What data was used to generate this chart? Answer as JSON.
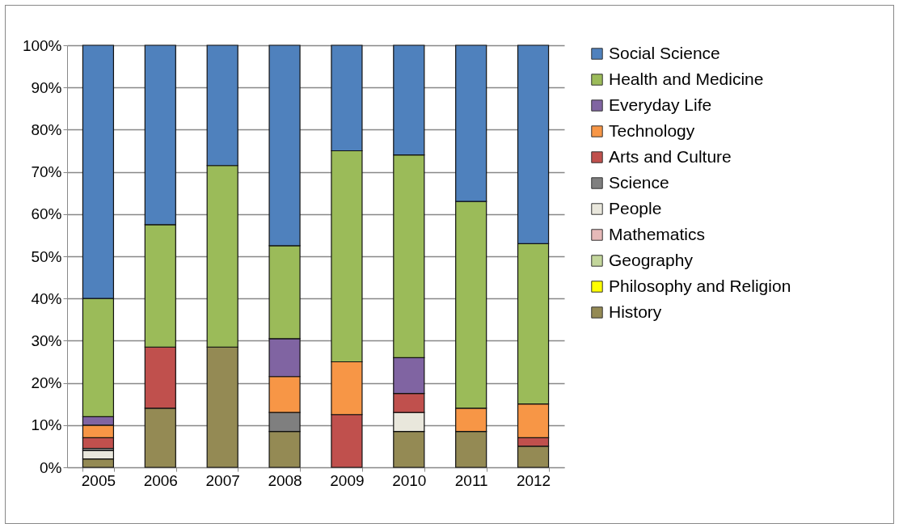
{
  "chart_data": {
    "type": "bar",
    "stacked": true,
    "categories": [
      "2005",
      "2006",
      "2007",
      "2008",
      "2009",
      "2010",
      "2011",
      "2012"
    ],
    "series": [
      {
        "name": "History",
        "color": "#948a54",
        "values": [
          2,
          14,
          28.5,
          8.5,
          0,
          8.5,
          8.5,
          5
        ]
      },
      {
        "name": "Philosophy and Religion",
        "color": "#ffff00",
        "values": [
          0,
          0,
          0,
          0,
          0,
          0,
          0,
          0
        ]
      },
      {
        "name": "Geography",
        "color": "#c3d69b",
        "values": [
          0,
          0,
          0,
          0,
          0,
          0,
          0,
          0
        ]
      },
      {
        "name": "Mathematics",
        "color": "#e6b9b8",
        "values": [
          0,
          0,
          0,
          0,
          0,
          0,
          0,
          0
        ]
      },
      {
        "name": "People",
        "color": "#e9e7dc",
        "values": [
          2,
          0,
          0,
          0,
          0,
          4.5,
          0,
          0
        ]
      },
      {
        "name": "Science",
        "color": "#7f7f7f",
        "values": [
          0.5,
          0,
          0,
          4.5,
          0,
          0,
          0,
          0
        ]
      },
      {
        "name": "Arts and Culture",
        "color": "#c0504d",
        "values": [
          2.5,
          14.5,
          0,
          0,
          12.5,
          4.5,
          0,
          2
        ]
      },
      {
        "name": "Technology",
        "color": "#f79646",
        "values": [
          3,
          0,
          0,
          8.5,
          12.5,
          0,
          5.5,
          8
        ]
      },
      {
        "name": "Everyday Life",
        "color": "#8064a2",
        "values": [
          2,
          0,
          0,
          9,
          0,
          8.5,
          0,
          0
        ]
      },
      {
        "name": "Health and Medicine",
        "color": "#9bbb59",
        "values": [
          28,
          29,
          43,
          22,
          50,
          48,
          49,
          38
        ]
      },
      {
        "name": "Social Science",
        "color": "#4f81bd",
        "values": [
          60,
          42.5,
          28.5,
          47.5,
          25,
          26,
          37,
          47
        ]
      }
    ],
    "ylim": [
      0,
      100
    ],
    "yticks": [
      {
        "value": 0,
        "label": "0%"
      },
      {
        "value": 10,
        "label": "10%"
      },
      {
        "value": 20,
        "label": "20%"
      },
      {
        "value": 30,
        "label": "30%"
      },
      {
        "value": 40,
        "label": "40%"
      },
      {
        "value": 50,
        "label": "50%"
      },
      {
        "value": 60,
        "label": "60%"
      },
      {
        "value": 70,
        "label": "70%"
      },
      {
        "value": 80,
        "label": "80%"
      },
      {
        "value": 90,
        "label": "90%"
      },
      {
        "value": 100,
        "label": "100%"
      }
    ],
    "grid": "y",
    "legend": "right"
  }
}
